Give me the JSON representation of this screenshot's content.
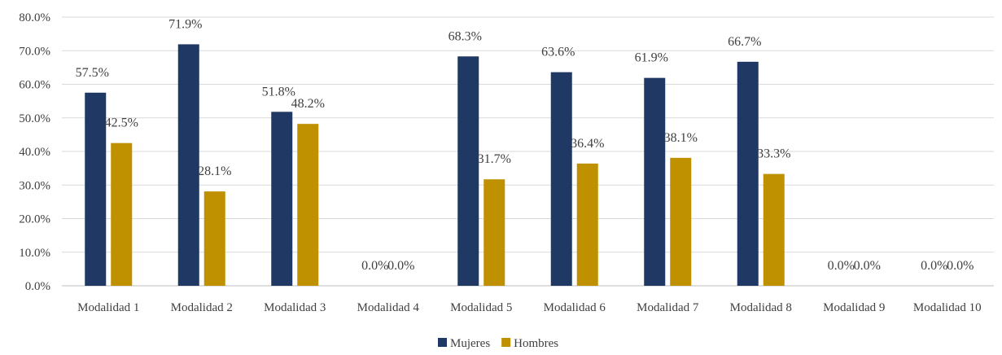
{
  "chart_data": {
    "type": "bar",
    "title": "",
    "xlabel": "",
    "ylabel": "",
    "ylim": [
      0,
      80
    ],
    "ytick_step": 10,
    "ytick_labels": [
      "0.0%",
      "10.0%",
      "20.0%",
      "30.0%",
      "40.0%",
      "50.0%",
      "60.0%",
      "70.0%",
      "80.0%"
    ],
    "grid": true,
    "legend_position": "bottom",
    "categories": [
      "Modalidad 1",
      "Modalidad 2",
      "Modalidad 3",
      "Modalidad 4",
      "Modalidad 5",
      "Modalidad 6",
      "Modalidad 7",
      "Modalidad 8",
      "Modalidad 9",
      "Modalidad 10"
    ],
    "series": [
      {
        "name": "Mujeres",
        "color": "#1F3864",
        "values": [
          57.5,
          71.9,
          51.8,
          0.0,
          68.3,
          63.6,
          61.9,
          66.7,
          0.0,
          0.0
        ],
        "labels": [
          "57.5%",
          "71.9%",
          "51.8%",
          "0.0%",
          "68.3%",
          "63.6%",
          "61.9%",
          "66.7%",
          "0.0%",
          "0.0%"
        ]
      },
      {
        "name": "Hombres",
        "color": "#BF9000",
        "values": [
          42.5,
          28.1,
          48.2,
          0.0,
          31.7,
          36.4,
          38.1,
          33.3,
          0.0,
          0.0
        ],
        "labels": [
          "42.5%",
          "28.1%",
          "48.2%",
          "0.0%",
          "31.7%",
          "36.4%",
          "38.1%",
          "33.3%",
          "0.0%",
          "0.0%"
        ]
      }
    ]
  }
}
